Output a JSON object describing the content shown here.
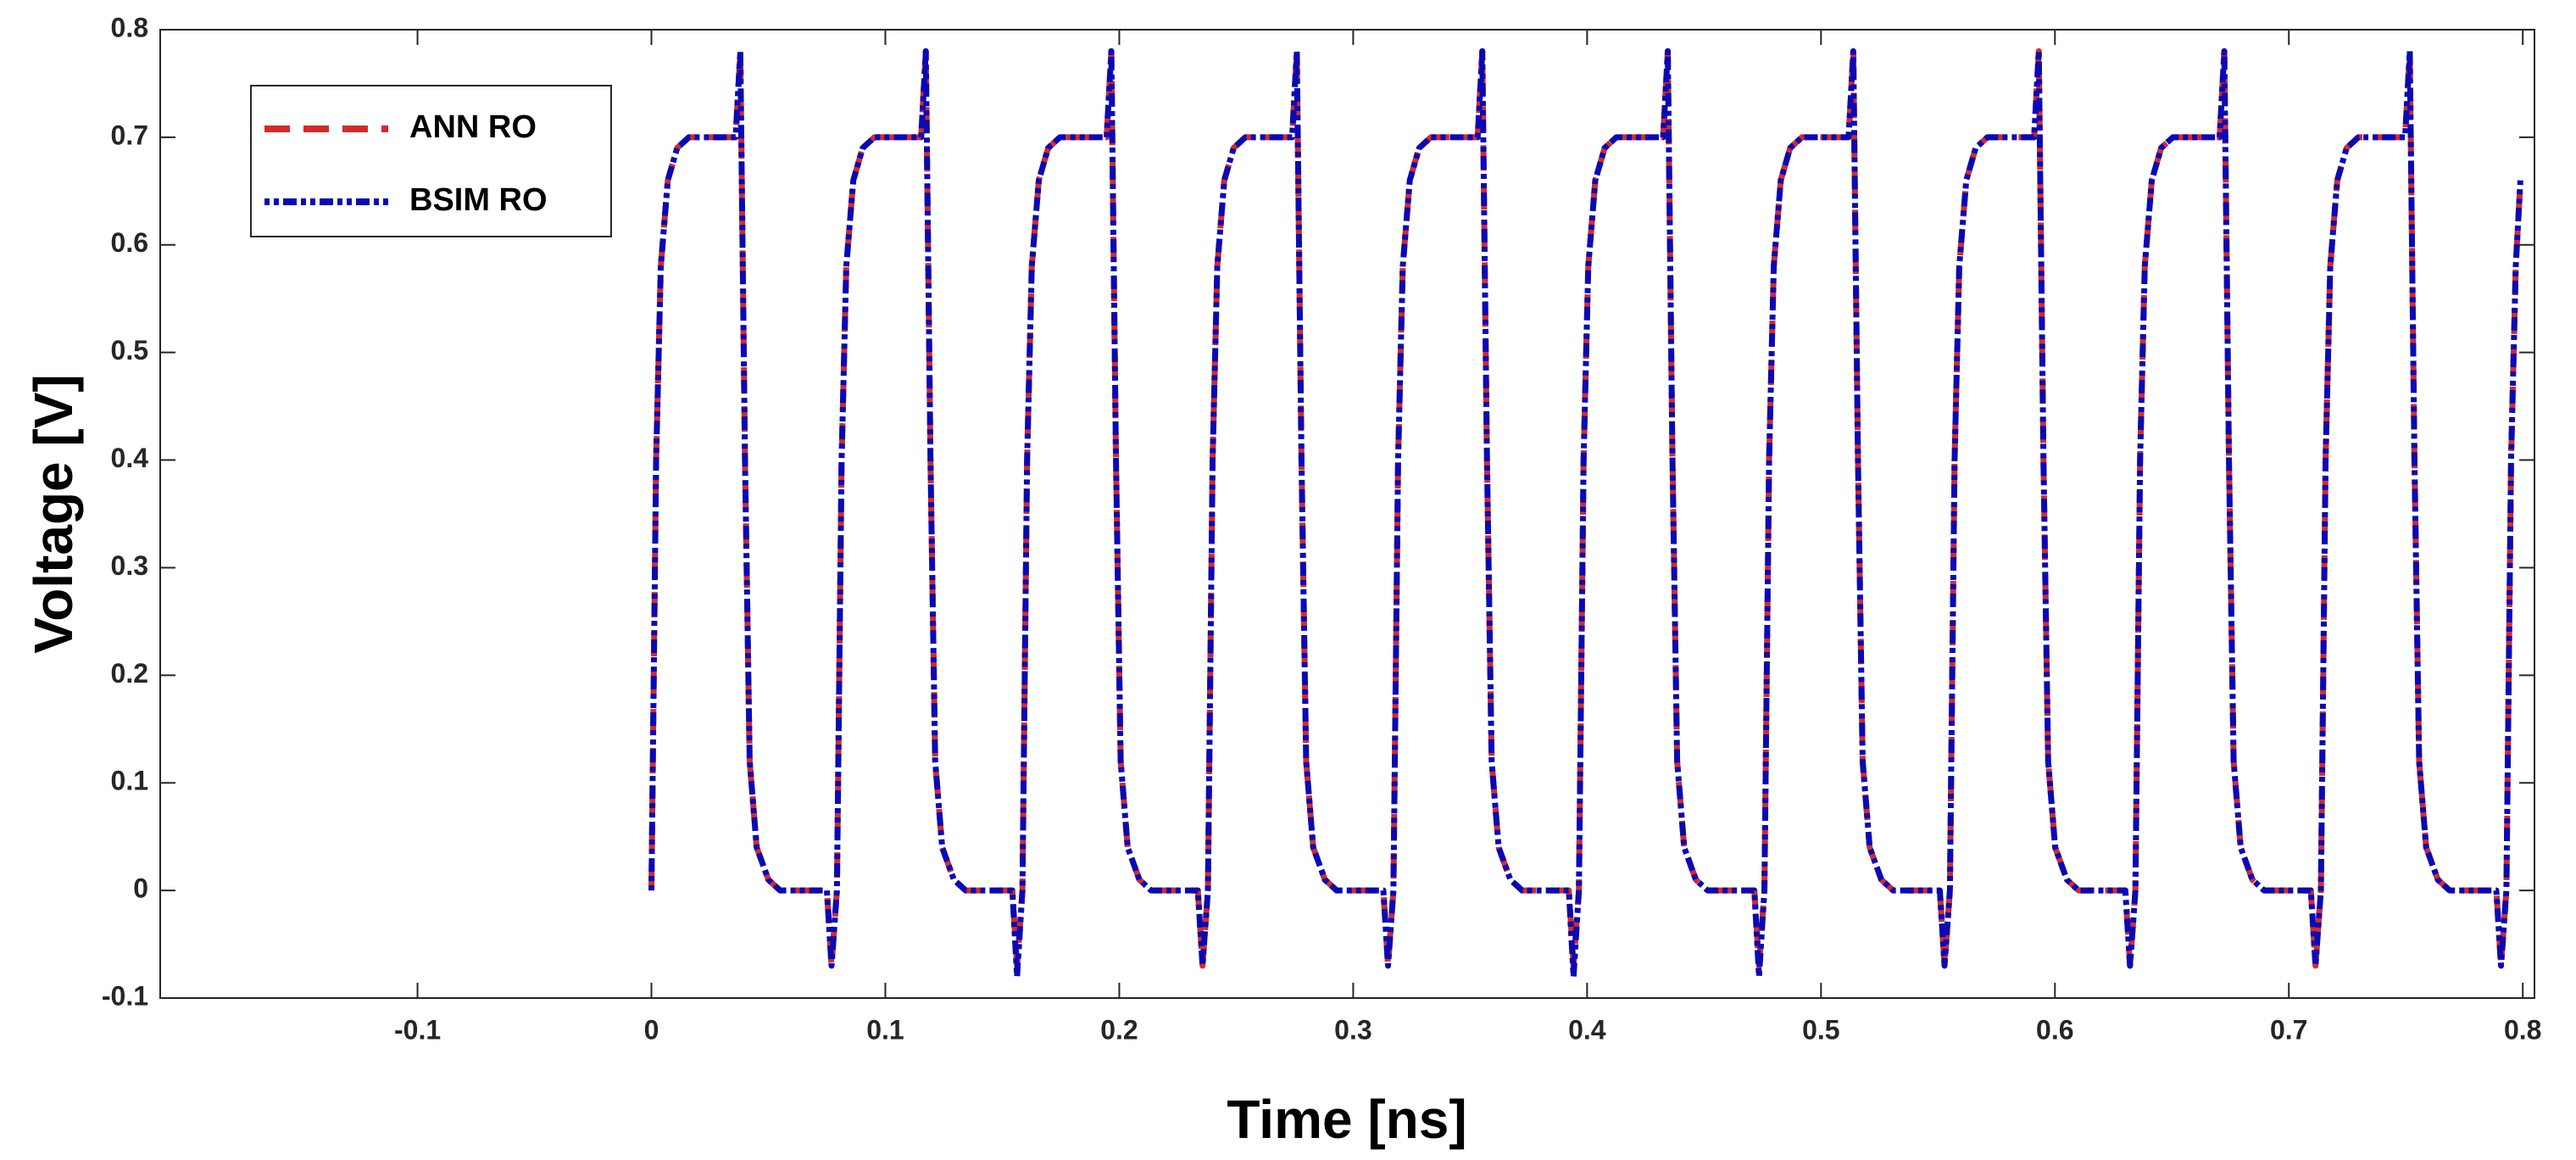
{
  "chart_data": {
    "type": "line",
    "xlabel": "Time [ns]",
    "ylabel": "Voltage [V]",
    "xlim": [
      -0.21,
      0.805
    ],
    "ylim": [
      -0.1,
      0.8
    ],
    "xticks": [
      -0.1,
      0,
      0.1,
      0.2,
      0.3,
      0.4,
      0.5,
      0.6,
      0.7,
      0.8
    ],
    "yticks": [
      -0.1,
      0,
      0.1,
      0.2,
      0.3,
      0.4,
      0.5,
      0.6,
      0.7,
      0.8
    ],
    "grid": false,
    "legend": "upper left",
    "x": [
      0,
      0.002,
      0.004,
      0.007,
      0.011,
      0.016,
      0.036,
      0.038,
      0.04,
      0.042,
      0.045,
      0.05,
      0.055,
      0.075,
      0.077,
      0.0793,
      0.0813,
      0.0833,
      0.0863,
      0.0903,
      0.0953,
      0.1153,
      0.1173,
      0.1193,
      0.1213,
      0.1243,
      0.1293,
      0.1343,
      0.1543,
      0.1563,
      0.1586,
      0.1606,
      0.1626,
      0.1656,
      0.1696,
      0.1746,
      0.1946,
      0.1966,
      0.1986,
      0.2006,
      0.2036,
      0.2086,
      0.2136,
      0.2336,
      0.2356,
      0.2379,
      0.2399,
      0.2419,
      0.2449,
      0.2489,
      0.2539,
      0.2739,
      0.2759,
      0.2779,
      0.2799,
      0.2829,
      0.2879,
      0.2929,
      0.3129,
      0.3149,
      0.3172,
      0.3192,
      0.3212,
      0.3242,
      0.3282,
      0.3332,
      0.3532,
      0.3552,
      0.3572,
      0.3592,
      0.3622,
      0.3672,
      0.3722,
      0.3922,
      0.3942,
      0.3965,
      0.3985,
      0.4005,
      0.4035,
      0.4075,
      0.4125,
      0.4325,
      0.4345,
      0.4365,
      0.4385,
      0.4415,
      0.4465,
      0.4515,
      0.4715,
      0.4735,
      0.4758,
      0.4778,
      0.4798,
      0.4828,
      0.4868,
      0.4918,
      0.5118,
      0.5138,
      0.5158,
      0.5178,
      0.5208,
      0.5258,
      0.5308,
      0.5508,
      0.5528,
      0.5551,
      0.5571,
      0.5591,
      0.5621,
      0.5661,
      0.5711,
      0.5911,
      0.5931,
      0.5951,
      0.5971,
      0.6001,
      0.6051,
      0.6101,
      0.6301,
      0.6321,
      0.6344,
      0.6364,
      0.6384,
      0.6414,
      0.6454,
      0.6504,
      0.6704,
      0.6724,
      0.6744,
      0.6764,
      0.6794,
      0.6844,
      0.6894,
      0.7094,
      0.7114,
      0.7137,
      0.7157,
      0.7177,
      0.7207,
      0.7247,
      0.7297,
      0.7497,
      0.7517,
      0.7537,
      0.7557,
      0.7587,
      0.7637,
      0.7687,
      0.7887,
      0.7907,
      0.793,
      0.795,
      0.797,
      0.799
    ],
    "series": [
      {
        "name": "ANN RO",
        "color": "#d42a2a",
        "style": "dashed",
        "values": [
          0,
          0.4,
          0.58,
          0.66,
          0.69,
          0.7,
          0.7,
          0.78,
          0.4,
          0.12,
          0.04,
          0.01,
          0,
          0,
          -0.07,
          0,
          0.4,
          0.58,
          0.66,
          0.69,
          0.7,
          0.7,
          0.78,
          0.4,
          0.12,
          0.04,
          0.01,
          0,
          0,
          -0.07,
          0,
          0.4,
          0.58,
          0.66,
          0.69,
          0.7,
          0.7,
          0.78,
          0.4,
          0.12,
          0.04,
          0.01,
          0,
          0,
          -0.07,
          0,
          0.4,
          0.58,
          0.66,
          0.69,
          0.7,
          0.7,
          0.78,
          0.4,
          0.12,
          0.04,
          0.01,
          0,
          0,
          -0.07,
          0,
          0.4,
          0.58,
          0.66,
          0.69,
          0.7,
          0.7,
          0.78,
          0.4,
          0.12,
          0.04,
          0.01,
          0,
          0,
          -0.07,
          0,
          0.4,
          0.58,
          0.66,
          0.69,
          0.7,
          0.7,
          0.78,
          0.4,
          0.12,
          0.04,
          0.01,
          0,
          0,
          -0.07,
          0,
          0.4,
          0.58,
          0.66,
          0.69,
          0.7,
          0.7,
          0.78,
          0.4,
          0.12,
          0.04,
          0.01,
          0,
          0,
          -0.07,
          0,
          0.4,
          0.58,
          0.66,
          0.69,
          0.7,
          0.7,
          0.78,
          0.4,
          0.12,
          0.04,
          0.01,
          0,
          0,
          -0.07,
          0,
          0.4,
          0.58,
          0.66,
          0.69,
          0.7,
          0.7,
          0.78,
          0.4,
          0.12,
          0.04,
          0.01,
          0,
          0,
          -0.07,
          0,
          0.4,
          0.58,
          0.66,
          0.69,
          0.7,
          0.7,
          0.78,
          0.4,
          0.12,
          0.04,
          0.01,
          0,
          0,
          -0.07,
          0,
          0.4,
          0.58,
          0.66
        ]
      },
      {
        "name": "BSIM RO",
        "color": "#0a0ab4",
        "style": "dashdot",
        "values": [
          0,
          0.4,
          0.58,
          0.66,
          0.69,
          0.7,
          0.7,
          0.78,
          0.4,
          0.12,
          0.04,
          0.01,
          0,
          0,
          -0.07,
          0,
          0.4,
          0.58,
          0.66,
          0.69,
          0.7,
          0.7,
          0.78,
          0.4,
          0.12,
          0.04,
          0.01,
          0,
          0,
          -0.08,
          0,
          0.4,
          0.58,
          0.66,
          0.69,
          0.7,
          0.7,
          0.78,
          0.4,
          0.12,
          0.04,
          0.01,
          0,
          0,
          -0.07,
          0,
          0.4,
          0.58,
          0.66,
          0.69,
          0.7,
          0.7,
          0.78,
          0.4,
          0.12,
          0.04,
          0.01,
          0,
          0,
          -0.07,
          0,
          0.4,
          0.58,
          0.66,
          0.69,
          0.7,
          0.7,
          0.78,
          0.4,
          0.12,
          0.04,
          0.01,
          0,
          0,
          -0.08,
          0,
          0.4,
          0.58,
          0.66,
          0.69,
          0.7,
          0.7,
          0.78,
          0.4,
          0.12,
          0.04,
          0.01,
          0,
          0,
          -0.08,
          0,
          0.4,
          0.58,
          0.66,
          0.69,
          0.7,
          0.7,
          0.78,
          0.4,
          0.12,
          0.04,
          0.01,
          0,
          0,
          -0.07,
          0,
          0.4,
          0.58,
          0.66,
          0.69,
          0.7,
          0.7,
          0.78,
          0.4,
          0.12,
          0.04,
          0.01,
          0,
          0,
          -0.07,
          0,
          0.4,
          0.58,
          0.66,
          0.69,
          0.7,
          0.7,
          0.78,
          0.4,
          0.12,
          0.04,
          0.01,
          0,
          0,
          -0.07,
          0,
          0.4,
          0.58,
          0.66,
          0.69,
          0.7,
          0.7,
          0.78,
          0.4,
          0.12,
          0.04,
          0.01,
          0,
          0,
          -0.07,
          0,
          0.4,
          0.58,
          0.66
        ]
      }
    ]
  }
}
